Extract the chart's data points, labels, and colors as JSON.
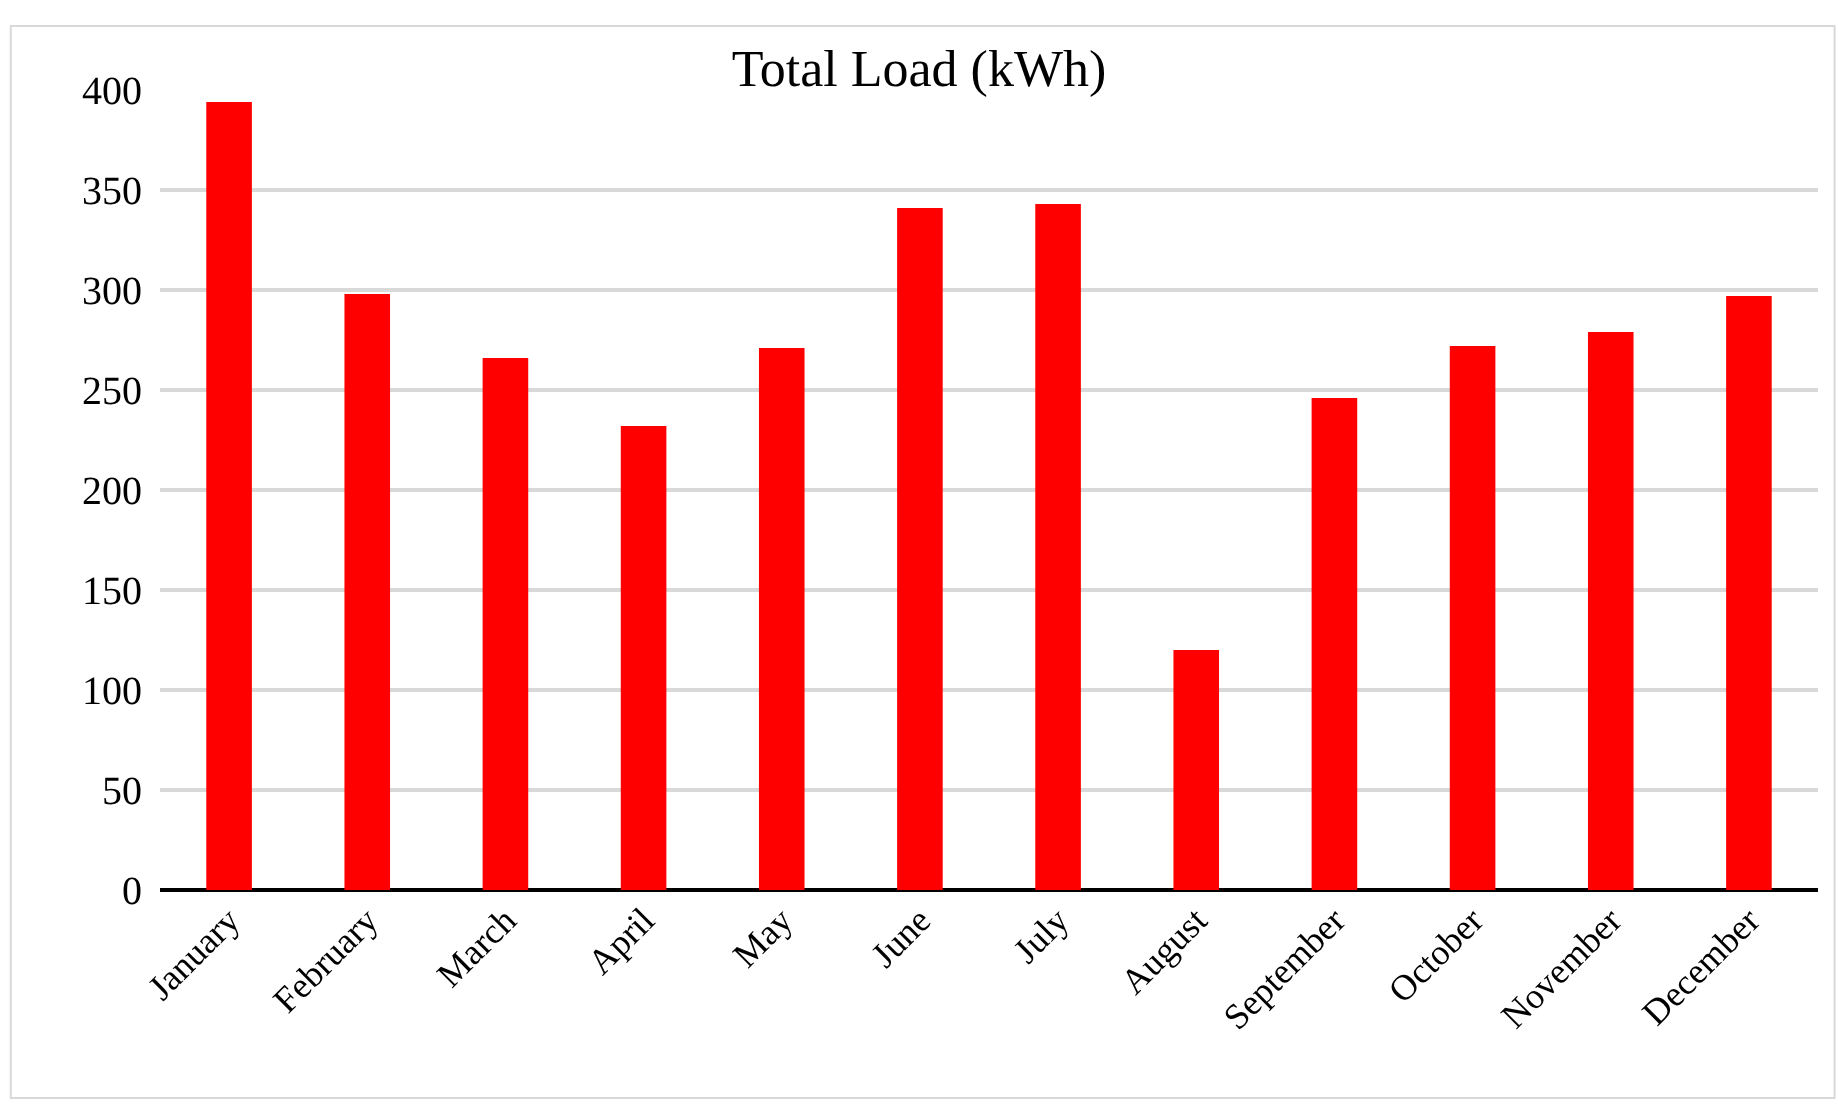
{
  "chart_data": {
    "type": "bar",
    "title": "Total Load (kWh)",
    "categories": [
      "January",
      "February",
      "March",
      "April",
      "May",
      "June",
      "July",
      "August",
      "September",
      "October",
      "November",
      "December"
    ],
    "values": [
      394,
      298,
      266,
      232,
      271,
      341,
      343,
      120,
      246,
      272,
      279,
      297
    ],
    "color": "#ff0000",
    "ylim": [
      0,
      400
    ],
    "yticks": [
      0,
      50,
      100,
      150,
      200,
      250,
      300,
      350,
      400
    ],
    "grid": "y"
  }
}
